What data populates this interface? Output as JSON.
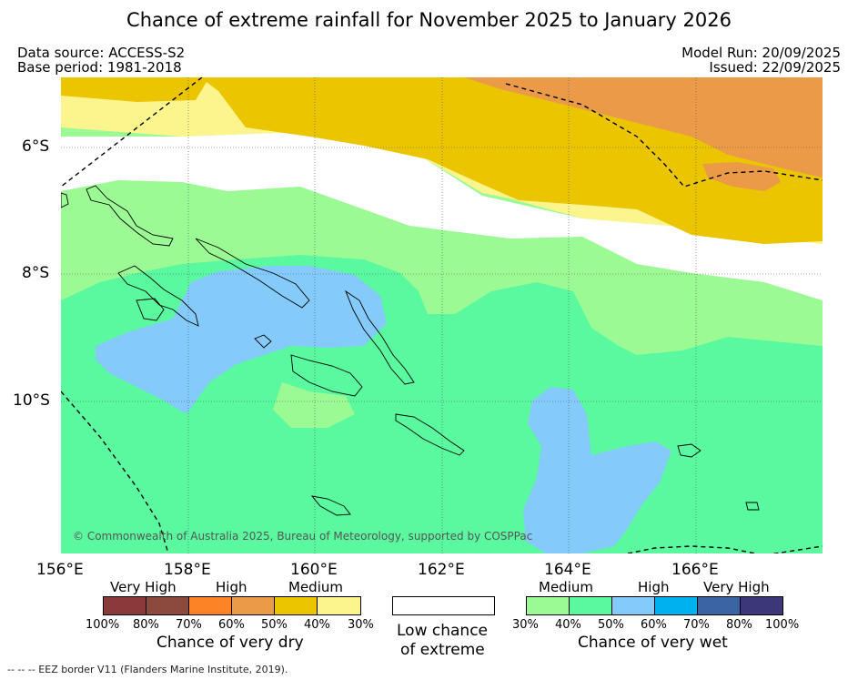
{
  "title": "Chance of extreme rainfall for November 2025 to January 2026",
  "meta": {
    "data_source": "Data source: ACCESS-S2",
    "base_period": "Base period: 1981-2018",
    "model_run": "Model Run: 20/09/2025",
    "issued": "Issued: 22/09/2025"
  },
  "map": {
    "copyright": "© Commonwealth of Australia 2025, Bureau of Meteorology, supported by COSPPac",
    "lon_labels": [
      "156°E",
      "158°E",
      "160°E",
      "162°E",
      "164°E",
      "166°E"
    ],
    "lat_labels": [
      "6°S",
      "8°S",
      "10°S"
    ]
  },
  "legend": {
    "dry": {
      "categories": [
        "Very High",
        "High",
        "Medium"
      ],
      "ticks": [
        "100%",
        "80%",
        "70%",
        "60%",
        "50%",
        "40%",
        "30%"
      ],
      "title": "Chance of very dry",
      "colors": [
        "#8b3a3a",
        "#8c4a3e",
        "#fc8426",
        "#eb9a48",
        "#ebc500",
        "#fcf58e"
      ]
    },
    "neutral": {
      "line1": "Low chance",
      "line2": "of extreme",
      "color": "#ffffff"
    },
    "wet": {
      "categories": [
        "Medium",
        "High",
        "Very High"
      ],
      "ticks": [
        "30%",
        "40%",
        "50%",
        "60%",
        "70%",
        "80%",
        "100%"
      ],
      "title": "Chance of very wet",
      "colors": [
        "#9bfa93",
        "#5af9a0",
        "#84cbfb",
        "#00b1ef",
        "#3a64a3",
        "#3c3779"
      ]
    }
  },
  "footnote": "--  --  -- EEZ border V11 (Flanders Marine Institute, 2019)."
}
